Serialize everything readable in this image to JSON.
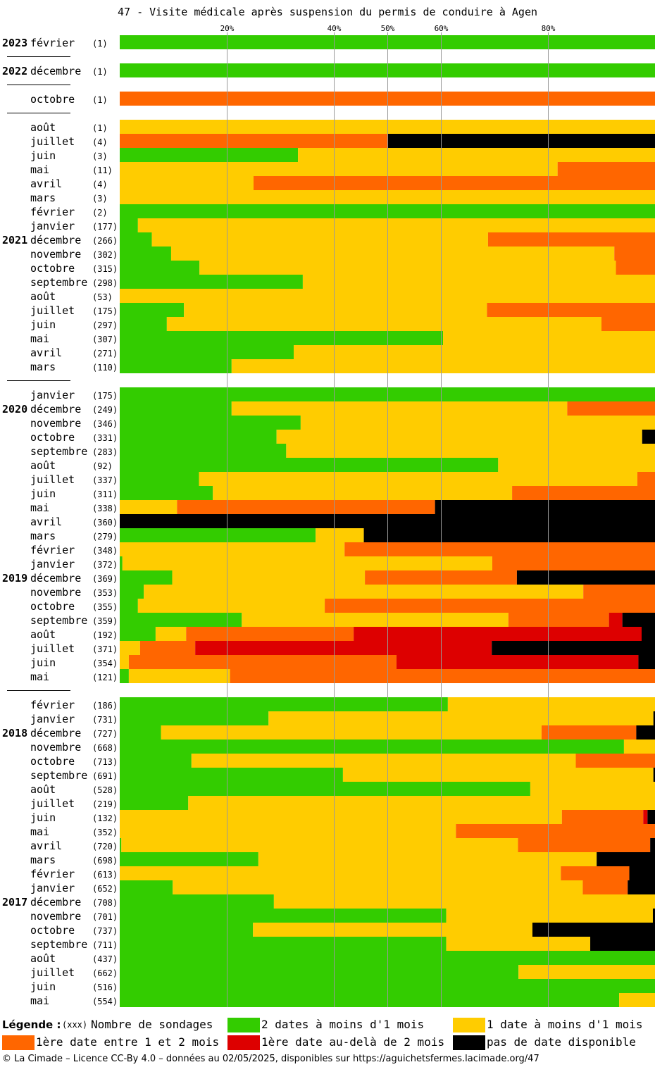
{
  "title": "47 - Visite médicale après suspension du permis de conduire à Agen",
  "colors": {
    "c1": "#33cc00",
    "c2": "#ffcc00",
    "c3": "#ff6600",
    "c4": "#dd0000",
    "c5": "#000000",
    "grid": "#999999",
    "separator": "#000000"
  },
  "legend": {
    "heading": "Légende :",
    "sample": "(xxx)",
    "sample_label": "Nombre de sondages",
    "items": [
      {
        "key": "c1",
        "label": "2 dates à moins d'1 mois"
      },
      {
        "key": "c2",
        "label": "1 date à moins d'1 mois"
      },
      {
        "key": "c3",
        "label": "1ère date entre 1 et 2 mois"
      },
      {
        "key": "c4",
        "label": "1ère date au-delà de 2 mois"
      },
      {
        "key": "c5",
        "label": "pas de date disponible"
      }
    ]
  },
  "footer": "© La Cimade – Licence CC-By 4.0 – données au 02/05/2025, disponibles sur https://aguichetsfermes.lacimade.org/47",
  "chart_data": {
    "type": "bar",
    "orientation": "horizontal-stacked-percent",
    "x_ticks": [
      "20%",
      "40%",
      "50%",
      "60%",
      "80%"
    ],
    "x_tick_values": [
      20,
      40,
      50,
      60,
      80
    ],
    "xlim": [
      0,
      100
    ],
    "series_order": [
      "c1",
      "c2",
      "c3",
      "c4",
      "c5"
    ],
    "rows": [
      {
        "year": "2023",
        "month": "février",
        "count": "(1)",
        "segs": [
          100,
          0,
          0,
          0,
          0
        ]
      },
      {
        "sep": true
      },
      {
        "year": "2022",
        "month": "décembre",
        "count": "(1)",
        "segs": [
          100,
          0,
          0,
          0,
          0
        ]
      },
      {
        "sep": true
      },
      {
        "year": "",
        "month": "octobre",
        "count": "(1)",
        "segs": [
          0,
          0,
          100,
          0,
          0
        ]
      },
      {
        "sep": true
      },
      {
        "year": "",
        "month": "août",
        "count": "(1)",
        "segs": [
          0,
          100,
          0,
          0,
          0
        ]
      },
      {
        "year": "",
        "month": "juillet",
        "count": "(4)",
        "segs": [
          0,
          0,
          50,
          0,
          50
        ]
      },
      {
        "year": "",
        "month": "juin",
        "count": "(3)",
        "segs": [
          33.3,
          66.7,
          0,
          0,
          0
        ]
      },
      {
        "year": "",
        "month": "mai",
        "count": "(11)",
        "segs": [
          0,
          81.8,
          18.2,
          0,
          0
        ]
      },
      {
        "year": "",
        "month": "avril",
        "count": "(4)",
        "segs": [
          0,
          25,
          75,
          0,
          0
        ]
      },
      {
        "year": "",
        "month": "mars",
        "count": "(3)",
        "segs": [
          0,
          100,
          0,
          0,
          0
        ]
      },
      {
        "year": "",
        "month": "février",
        "count": "(2)",
        "segs": [
          100,
          0,
          0,
          0,
          0
        ]
      },
      {
        "year": "",
        "month": "janvier",
        "count": "(177)",
        "segs": [
          3.4,
          96.6,
          0,
          0,
          0
        ]
      },
      {
        "year": "2021",
        "month": "décembre",
        "count": "(266)",
        "segs": [
          6,
          62.8,
          31.2,
          0,
          0
        ]
      },
      {
        "year": "",
        "month": "novembre",
        "count": "(302)",
        "segs": [
          9.6,
          82.8,
          7.6,
          0,
          0
        ]
      },
      {
        "year": "",
        "month": "octobre",
        "count": "(315)",
        "segs": [
          14.9,
          77.8,
          8.3,
          0,
          0
        ]
      },
      {
        "year": "",
        "month": "septembre",
        "count": "(298)",
        "segs": [
          34.2,
          65.8,
          0,
          0,
          0
        ]
      },
      {
        "year": "",
        "month": "août",
        "count": "(53)",
        "segs": [
          0,
          100,
          0,
          0,
          0
        ]
      },
      {
        "year": "",
        "month": "juillet",
        "count": "(175)",
        "segs": [
          12,
          56.6,
          31.4,
          0,
          0
        ]
      },
      {
        "year": "",
        "month": "juin",
        "count": "(297)",
        "segs": [
          8.8,
          81.2,
          10,
          0,
          0
        ]
      },
      {
        "year": "",
        "month": "mai",
        "count": "(307)",
        "segs": [
          60.4,
          39.6,
          0,
          0,
          0
        ]
      },
      {
        "year": "",
        "month": "avril",
        "count": "(271)",
        "segs": [
          32.5,
          67.5,
          0,
          0,
          0
        ]
      },
      {
        "year": "",
        "month": "mars",
        "count": "(110)",
        "segs": [
          20.9,
          79.1,
          0,
          0,
          0
        ]
      },
      {
        "sep": true
      },
      {
        "year": "",
        "month": "janvier",
        "count": "(175)",
        "segs": [
          100,
          0,
          0,
          0,
          0
        ]
      },
      {
        "year": "2020",
        "month": "décembre",
        "count": "(249)",
        "segs": [
          20.9,
          62.7,
          16.4,
          0,
          0
        ]
      },
      {
        "year": "",
        "month": "novembre",
        "count": "(346)",
        "segs": [
          33.8,
          66.2,
          0,
          0,
          0
        ]
      },
      {
        "year": "",
        "month": "octobre",
        "count": "(331)",
        "segs": [
          29.3,
          68.3,
          0,
          0,
          2.4
        ]
      },
      {
        "year": "",
        "month": "septembre",
        "count": "(283)",
        "segs": [
          31.1,
          68.9,
          0,
          0,
          0
        ]
      },
      {
        "year": "",
        "month": "août",
        "count": "(92)",
        "segs": [
          70.7,
          29.3,
          0,
          0,
          0
        ]
      },
      {
        "year": "",
        "month": "juillet",
        "count": "(337)",
        "segs": [
          14.8,
          81.9,
          3.3,
          0,
          0
        ]
      },
      {
        "year": "",
        "month": "juin",
        "count": "(311)",
        "segs": [
          17.4,
          55.9,
          26.7,
          0,
          0
        ]
      },
      {
        "year": "",
        "month": "mai",
        "count": "(338)",
        "segs": [
          0,
          10.7,
          48.2,
          0,
          41.1
        ]
      },
      {
        "year": "",
        "month": "avril",
        "count": "(360)",
        "segs": [
          0,
          0,
          0,
          0,
          100
        ]
      },
      {
        "year": "",
        "month": "mars",
        "count": "(279)",
        "segs": [
          36.6,
          9,
          0,
          0,
          54.4
        ]
      },
      {
        "year": "",
        "month": "février",
        "count": "(348)",
        "segs": [
          0,
          42,
          58,
          0,
          0
        ]
      },
      {
        "year": "",
        "month": "janvier",
        "count": "(372)",
        "segs": [
          0.5,
          69.1,
          30.4,
          0,
          0
        ]
      },
      {
        "year": "2019",
        "month": "décembre",
        "count": "(369)",
        "segs": [
          9.8,
          36,
          28.4,
          0,
          25.8
        ]
      },
      {
        "year": "",
        "month": "novembre",
        "count": "(353)",
        "segs": [
          4.5,
          82.1,
          13.4,
          0,
          0
        ]
      },
      {
        "year": "",
        "month": "octobre",
        "count": "(355)",
        "segs": [
          3.4,
          34.9,
          61.7,
          0,
          0
        ]
      },
      {
        "year": "",
        "month": "septembre",
        "count": "(359)",
        "segs": [
          22.8,
          49.8,
          18.8,
          2.5,
          6.1
        ]
      },
      {
        "year": "",
        "month": "août",
        "count": "(192)",
        "segs": [
          6.7,
          5.7,
          31.3,
          53.8,
          2.5
        ]
      },
      {
        "year": "",
        "month": "juillet",
        "count": "(371)",
        "segs": [
          0,
          3.8,
          10.3,
          55.4,
          30.5
        ]
      },
      {
        "year": "",
        "month": "juin",
        "count": "(354)",
        "segs": [
          0,
          1.7,
          50,
          45.2,
          3.1
        ]
      },
      {
        "year": "",
        "month": "mai",
        "count": "(121)",
        "segs": [
          1.7,
          18.9,
          79.4,
          0,
          0
        ]
      },
      {
        "sep": true
      },
      {
        "year": "",
        "month": "février",
        "count": "(186)",
        "segs": [
          61.3,
          38.7,
          0,
          0,
          0
        ]
      },
      {
        "year": "",
        "month": "janvier",
        "count": "(731)",
        "segs": [
          27.8,
          71.9,
          0,
          0,
          0.3
        ]
      },
      {
        "year": "2018",
        "month": "décembre",
        "count": "(727)",
        "segs": [
          7.7,
          71.1,
          17.7,
          0,
          3.5
        ]
      },
      {
        "year": "",
        "month": "novembre",
        "count": "(668)",
        "segs": [
          94.2,
          5.8,
          0,
          0,
          0
        ]
      },
      {
        "year": "",
        "month": "octobre",
        "count": "(713)",
        "segs": [
          13.4,
          71.8,
          14.8,
          0,
          0
        ]
      },
      {
        "year": "",
        "month": "septembre",
        "count": "(691)",
        "segs": [
          41.7,
          58,
          0,
          0,
          0.3
        ]
      },
      {
        "year": "",
        "month": "août",
        "count": "(528)",
        "segs": [
          76.7,
          23.3,
          0,
          0,
          0
        ]
      },
      {
        "year": "",
        "month": "juillet",
        "count": "(219)",
        "segs": [
          12.8,
          87.2,
          0,
          0,
          0
        ]
      },
      {
        "year": "",
        "month": "juin",
        "count": "(132)",
        "segs": [
          0,
          82.6,
          15.2,
          0.8,
          1.4
        ]
      },
      {
        "year": "",
        "month": "mai",
        "count": "(352)",
        "segs": [
          0,
          62.8,
          37.2,
          0,
          0
        ]
      },
      {
        "year": "",
        "month": "avril",
        "count": "(720)",
        "segs": [
          0.3,
          74.1,
          24.7,
          0,
          0.9
        ]
      },
      {
        "year": "",
        "month": "mars",
        "count": "(698)",
        "segs": [
          25.9,
          63.2,
          0,
          0,
          10.9
        ]
      },
      {
        "year": "",
        "month": "février",
        "count": "(613)",
        "segs": [
          0,
          82.4,
          12.8,
          0,
          4.8
        ]
      },
      {
        "year": "",
        "month": "janvier",
        "count": "(652)",
        "segs": [
          9.9,
          76.6,
          8.4,
          0,
          5.1
        ]
      },
      {
        "year": "2017",
        "month": "décembre",
        "count": "(708)",
        "segs": [
          28.8,
          71.2,
          0,
          0,
          0
        ]
      },
      {
        "year": "",
        "month": "novembre",
        "count": "(701)",
        "segs": [
          61,
          38.6,
          0,
          0,
          0.4
        ]
      },
      {
        "year": "",
        "month": "octobre",
        "count": "(737)",
        "segs": [
          24.9,
          52.2,
          0,
          0,
          22.9
        ]
      },
      {
        "year": "",
        "month": "septembre",
        "count": "(711)",
        "segs": [
          61,
          26.9,
          0,
          0,
          12.1
        ]
      },
      {
        "year": "",
        "month": "août",
        "count": "(437)",
        "segs": [
          100,
          0,
          0,
          0,
          0
        ]
      },
      {
        "year": "",
        "month": "juillet",
        "count": "(662)",
        "segs": [
          74.5,
          25.5,
          0,
          0,
          0
        ]
      },
      {
        "year": "",
        "month": "juin",
        "count": "(516)",
        "segs": [
          100,
          0,
          0,
          0,
          0
        ]
      },
      {
        "year": "",
        "month": "mai",
        "count": "(554)",
        "segs": [
          93.3,
          6.7,
          0,
          0,
          0
        ]
      }
    ]
  }
}
